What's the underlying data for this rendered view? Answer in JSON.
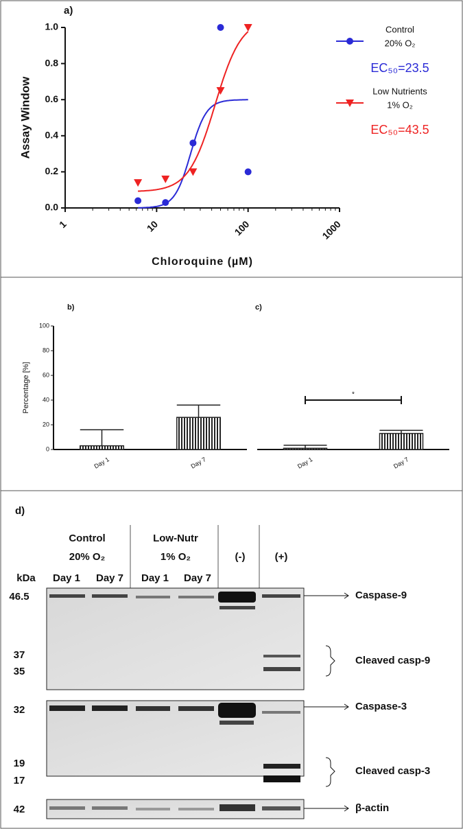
{
  "chart_data": [
    {
      "type": "scatter",
      "title": "a)",
      "xlabel": "Chloroquine (µM)",
      "ylabel": "Assay Window",
      "xscale": "log",
      "xlim": [
        1,
        1000
      ],
      "xticks": [
        1,
        10,
        100,
        1000
      ],
      "ylim": [
        0,
        1
      ],
      "yticks": [
        {
          "value": 0,
          "label": "0.0"
        },
        {
          "value": 0.2,
          "label": "0.2"
        },
        {
          "value": 0.4,
          "label": "0.4"
        },
        {
          "value": 0.6,
          "label": "0.6"
        },
        {
          "value": 0.8,
          "label": "0.8"
        },
        {
          "value": 1,
          "label": "1.0"
        }
      ],
      "series": [
        {
          "name": "Control",
          "subtitle": "20% O₂",
          "color": "#2a2ad6",
          "marker": "circle",
          "x": [
            6.25,
            12.5,
            25,
            50,
            100
          ],
          "values": [
            0.04,
            0.03,
            0.36,
            1.0,
            0.2
          ],
          "fit": {
            "bottom": 0,
            "top": 0.6,
            "ec50": 23.5,
            "hill": 5
          },
          "fit_label": "EC₅₀=23.5"
        },
        {
          "name": "Low Nutrients",
          "subtitle": "1% O₂",
          "color": "#ee2222",
          "marker": "triangle",
          "x": [
            6.25,
            12.5,
            25,
            50,
            100
          ],
          "values": [
            0.14,
            0.16,
            0.2,
            0.65,
            1.0
          ],
          "fit": {
            "bottom": 0.09,
            "top": 1.05,
            "ec50": 43.5,
            "hill": 3
          },
          "fit_label": "EC₅₀=43.5"
        }
      ]
    },
    {
      "type": "bar",
      "title": "b)",
      "ylabel": "Percentage [%]",
      "categories": [
        "Day 1",
        "Day 7"
      ],
      "values": [
        3,
        26
      ],
      "errors": [
        13,
        10
      ],
      "ylim": [
        0,
        100
      ],
      "yticks": [
        0,
        20,
        40,
        60,
        80,
        100
      ],
      "color": "#222222"
    },
    {
      "type": "bar",
      "title": "c)",
      "categories": [
        "Day 1",
        "Day 7"
      ],
      "values": [
        1,
        13
      ],
      "errors": [
        2.5,
        2.5
      ],
      "ylim": [
        0,
        100
      ],
      "color": "#222222",
      "significance": "*"
    }
  ],
  "blot": {
    "title": "d)",
    "groups": [
      {
        "label": "Control",
        "sub": "20% O₂"
      },
      {
        "label": "Low-Nutr",
        "sub": "1% O₂"
      },
      {
        "label": "(-)"
      },
      {
        "label": "(+)"
      }
    ],
    "kda": "kDa",
    "lanes": [
      "Day 1",
      "Day 7",
      "Day 1",
      "Day 7"
    ],
    "markers": [
      "46.5",
      "37",
      "35",
      "32",
      "19",
      "17",
      "42"
    ],
    "targets": [
      "Caspase-9",
      "Cleaved casp-9",
      "Caspase-3",
      "Cleaved casp-3",
      "β-actin"
    ]
  }
}
